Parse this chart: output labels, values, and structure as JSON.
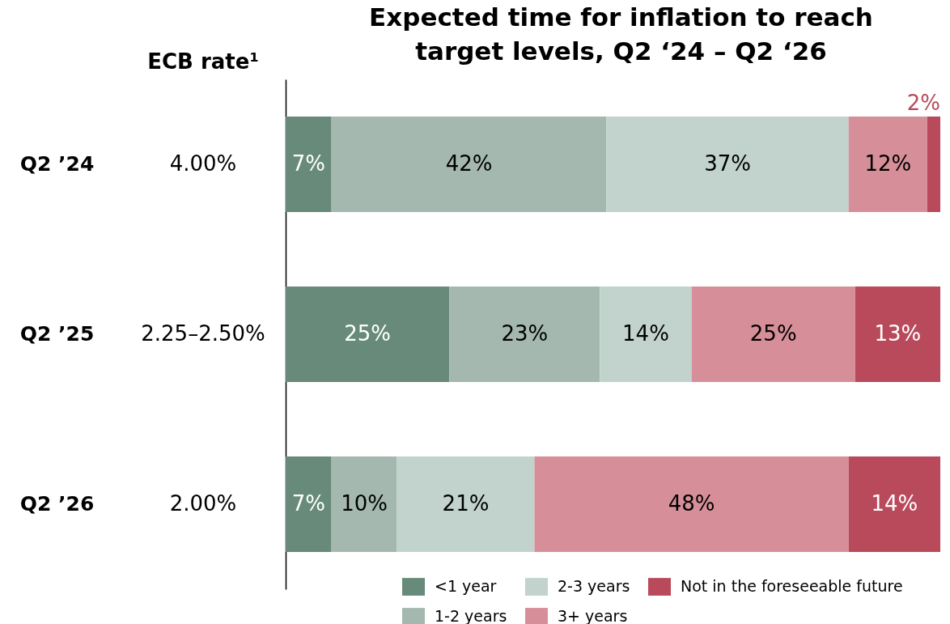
{
  "chart_data": {
    "type": "bar",
    "orientation": "horizontal",
    "stacked": true,
    "title": "Expected time for inflation to reach target levels, Q2 ‘24 – Q2 ‘26",
    "categories": [
      "Q2 ’24",
      "Q2 ’25",
      "Q2 ’26"
    ],
    "series": [
      {
        "name": "<1 year",
        "color": "#678a7b",
        "values": [
          7,
          25,
          7
        ],
        "value_labels": [
          "7%",
          "25%",
          "7%"
        ]
      },
      {
        "name": "1-2 years",
        "color": "#a4b8b0",
        "values": [
          42,
          23,
          10
        ],
        "value_labels": [
          "42%",
          "23%",
          "10%"
        ]
      },
      {
        "name": "2-3 years",
        "color": "#c1d3cc",
        "values": [
          37,
          14,
          21
        ],
        "value_labels": [
          "37%",
          "14%",
          "21%"
        ]
      },
      {
        "name": "3+ years",
        "color": "#d68f98",
        "values": [
          12,
          25,
          48
        ],
        "value_labels": [
          "12%",
          "25%",
          "48%"
        ]
      },
      {
        "name": "Not in the foreseeable future",
        "color": "#b94a5c",
        "values": [
          2,
          13,
          14
        ],
        "value_labels": [
          "2%",
          "13%",
          "14%"
        ]
      }
    ],
    "annotations": [
      "ECB rate¹",
      "4.00%",
      "2.25–2.50%",
      "2.00%"
    ],
    "legend": "bottom right",
    "tick_labels": "y"
  }
}
